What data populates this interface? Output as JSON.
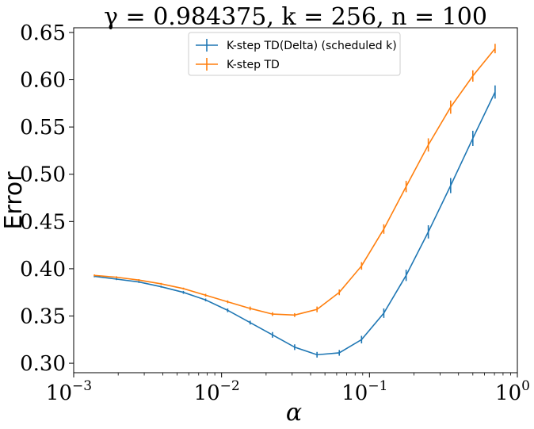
{
  "chart_data": {
    "type": "line",
    "title": "γ = 0.984375, k = 256, n = 100",
    "xlabel": "α",
    "ylabel": "Error",
    "xscale": "log",
    "xlim": [
      0.001,
      1
    ],
    "ylim": [
      0.29,
      0.655
    ],
    "xticks": [
      {
        "value": 0.001,
        "base": "10",
        "exp": "−3"
      },
      {
        "value": 0.01,
        "base": "10",
        "exp": "−2"
      },
      {
        "value": 0.1,
        "base": "10",
        "exp": "−1"
      },
      {
        "value": 1,
        "base": "10",
        "exp": "0"
      }
    ],
    "yticks": [
      {
        "value": 0.3,
        "label": "0.30"
      },
      {
        "value": 0.35,
        "label": "0.35"
      },
      {
        "value": 0.4,
        "label": "0.40"
      },
      {
        "value": 0.45,
        "label": "0.45"
      },
      {
        "value": 0.5,
        "label": "0.50"
      },
      {
        "value": 0.55,
        "label": "0.55"
      },
      {
        "value": 0.6,
        "label": "0.60"
      },
      {
        "value": 0.65,
        "label": "0.65"
      }
    ],
    "grid": false,
    "legend_position": "top-center",
    "x": [
      0.00138,
      0.00195,
      0.00276,
      0.0039,
      0.00552,
      0.0078,
      0.011,
      0.0156,
      0.0221,
      0.0312,
      0.0442,
      0.0625,
      0.0884,
      0.125,
      0.177,
      0.25,
      0.354,
      0.5,
      0.707
    ],
    "series": [
      {
        "name": "K-step TD(Delta) (scheduled k)",
        "color": "#1f77b4",
        "values": [
          0.392,
          0.389,
          0.386,
          0.381,
          0.375,
          0.367,
          0.356,
          0.343,
          0.33,
          0.317,
          0.309,
          0.311,
          0.325,
          0.353,
          0.393,
          0.439,
          0.488,
          0.538,
          0.587
        ],
        "errors": [
          0.001,
          0.001,
          0.001,
          0.001,
          0.0015,
          0.0015,
          0.002,
          0.002,
          0.003,
          0.003,
          0.003,
          0.003,
          0.004,
          0.005,
          0.006,
          0.007,
          0.008,
          0.008,
          0.007
        ]
      },
      {
        "name": "K-step TD",
        "color": "#ff7f0e",
        "values": [
          0.393,
          0.391,
          0.388,
          0.384,
          0.379,
          0.372,
          0.365,
          0.358,
          0.352,
          0.351,
          0.357,
          0.375,
          0.403,
          0.442,
          0.487,
          0.531,
          0.571,
          0.604,
          0.633
        ],
        "errors": [
          0.001,
          0.001,
          0.001,
          0.001,
          0.001,
          0.0015,
          0.0015,
          0.002,
          0.002,
          0.002,
          0.003,
          0.003,
          0.004,
          0.005,
          0.006,
          0.007,
          0.007,
          0.006,
          0.005
        ]
      }
    ]
  }
}
